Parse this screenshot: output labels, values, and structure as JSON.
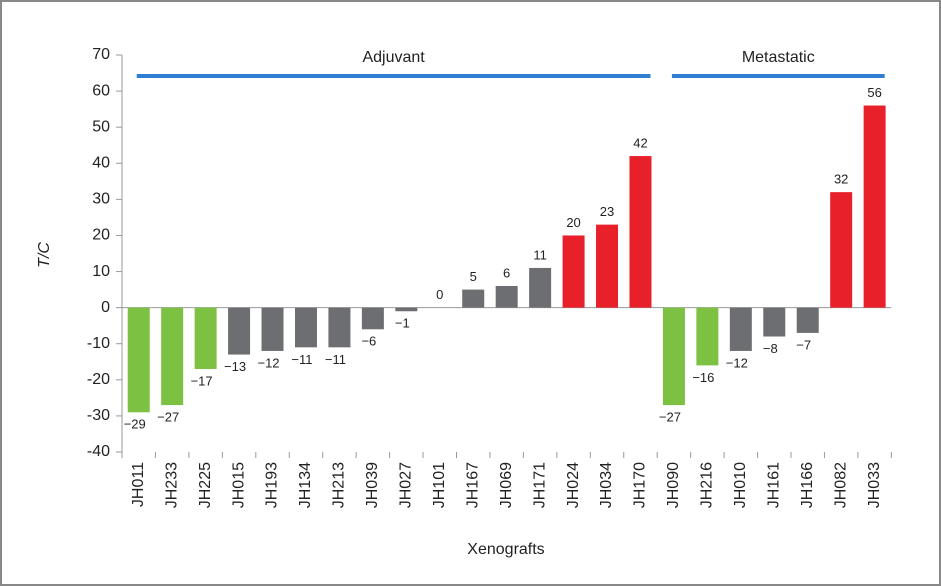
{
  "chart_data": {
    "type": "bar",
    "x_label": "Xenografts",
    "y_label": "T/C",
    "categories": [
      "JH011",
      "JH233",
      "JH225",
      "JH015",
      "JH193",
      "JH134",
      "JH213",
      "JH039",
      "JH027",
      "JH101",
      "JH167",
      "JH069",
      "JH171",
      "JH024",
      "JH034",
      "JH170",
      "JH090",
      "JH216",
      "JH010",
      "JH161",
      "JH166",
      "JH082",
      "JH033"
    ],
    "values": [
      -29,
      -27,
      -17,
      -13,
      -12,
      -11,
      -11,
      -6,
      -1,
      0,
      5,
      6,
      11,
      20,
      23,
      42,
      -27,
      -16,
      -12,
      -8,
      -7,
      32,
      56
    ],
    "value_labels": [
      "−29",
      "−27",
      "−17",
      "−13",
      "−12",
      "−11",
      "−11",
      "−6",
      "−1",
      "0",
      "5",
      "6",
      "11",
      "20",
      "23",
      "42",
      "−27",
      "−16",
      "−12",
      "−8",
      "−7",
      "32",
      "56"
    ],
    "colors": [
      "#7dc142",
      "#7dc142",
      "#7dc142",
      "#6d6e71",
      "#6d6e71",
      "#6d6e71",
      "#6d6e71",
      "#6d6e71",
      "#6d6e71",
      "#6d6e71",
      "#6d6e71",
      "#6d6e71",
      "#6d6e71",
      "#e8202a",
      "#e8202a",
      "#e8202a",
      "#7dc142",
      "#7dc142",
      "#6d6e71",
      "#6d6e71",
      "#6d6e71",
      "#e8202a",
      "#e8202a"
    ],
    "groups": [
      {
        "label": "Adjuvant",
        "first": "JH011",
        "last": "JH170",
        "color": "#2f7fd0"
      },
      {
        "label": "Metastatic",
        "first": "JH090",
        "last": "JH033",
        "color": "#2f7fd0"
      }
    ],
    "ylim": [
      -40,
      70
    ],
    "yticks": [
      -40,
      -30,
      -20,
      -10,
      0,
      10,
      20,
      30,
      40,
      50,
      60,
      70
    ]
  }
}
